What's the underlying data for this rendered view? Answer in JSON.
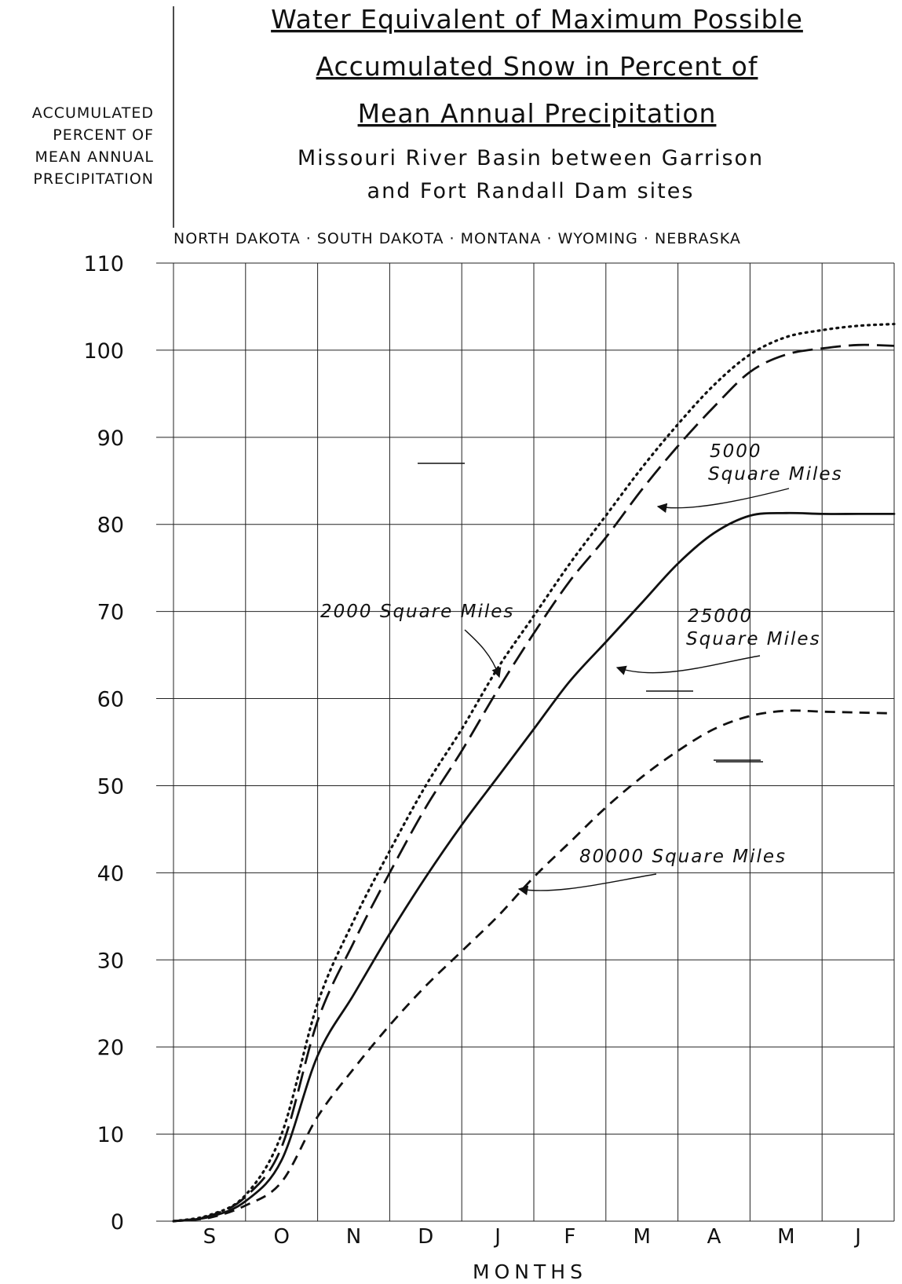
{
  "title": {
    "lines": [
      "Water Equivalent of Maximum Possible",
      "Accumulated Snow in Percent of",
      "Mean Annual Precipitation"
    ]
  },
  "subtitle": {
    "lines": [
      "Missouri River Basin between Garrison",
      "and Fort Randall Dam sites"
    ]
  },
  "states": "NORTH DAKOTA · SOUTH DAKOTA · MONTANA · WYOMING · NEBRASKA",
  "colors": {
    "ink": "#111111",
    "background": "#ffffff"
  },
  "chart_data": {
    "type": "line",
    "ylabel_lines": [
      "ACCUMULATED",
      "PERCENT OF",
      "MEAN ANNUAL",
      "PRECIPITATION"
    ],
    "xlabel": "MONTHS",
    "x_ticks": [
      "S",
      "O",
      "N",
      "D",
      "J",
      "F",
      "M",
      "A",
      "M",
      "J"
    ],
    "y_ticks": [
      "0",
      "10",
      "20",
      "30",
      "40",
      "50",
      "60",
      "70",
      "80",
      "90",
      "100",
      "110"
    ],
    "xlim": [
      0,
      10
    ],
    "ylim": [
      0,
      110
    ],
    "grid": true,
    "series": [
      {
        "name": "2000 Square Miles",
        "style": "dotted",
        "points": [
          [
            0,
            0
          ],
          [
            0.5,
            0.7
          ],
          [
            1,
            3
          ],
          [
            1.5,
            10
          ],
          [
            2,
            25
          ],
          [
            2.5,
            34.5
          ],
          [
            3,
            42.5
          ],
          [
            3.5,
            50
          ],
          [
            4,
            56.5
          ],
          [
            4.5,
            63.5
          ],
          [
            5,
            69.5
          ],
          [
            5.5,
            75.5
          ],
          [
            6,
            81
          ],
          [
            6.5,
            86.5
          ],
          [
            7,
            91.5
          ],
          [
            7.5,
            96
          ],
          [
            8,
            99.5
          ],
          [
            8.5,
            101.5
          ],
          [
            9,
            102.3
          ],
          [
            9.5,
            102.8
          ],
          [
            10,
            103
          ]
        ]
      },
      {
        "name": "5000 Square Miles",
        "style": "long-dash",
        "points": [
          [
            0,
            0
          ],
          [
            0.5,
            0.6
          ],
          [
            1,
            2.8
          ],
          [
            1.5,
            8.5
          ],
          [
            2,
            23
          ],
          [
            2.5,
            32
          ],
          [
            3,
            40
          ],
          [
            3.5,
            47.5
          ],
          [
            4,
            54
          ],
          [
            4.5,
            61
          ],
          [
            5,
            67.5
          ],
          [
            5.5,
            73.5
          ],
          [
            6,
            78.5
          ],
          [
            6.5,
            84
          ],
          [
            7,
            89
          ],
          [
            7.5,
            93.5
          ],
          [
            8,
            97.5
          ],
          [
            8.5,
            99.5
          ],
          [
            9,
            100.2
          ],
          [
            9.5,
            100.6
          ],
          [
            10,
            100.5
          ]
        ]
      },
      {
        "name": "25000 Square Miles",
        "style": "solid",
        "points": [
          [
            0,
            0
          ],
          [
            0.5,
            0.5
          ],
          [
            1,
            2.3
          ],
          [
            1.5,
            7
          ],
          [
            2,
            19
          ],
          [
            2.5,
            26
          ],
          [
            3,
            33
          ],
          [
            3.5,
            39.5
          ],
          [
            4,
            45.5
          ],
          [
            4.5,
            51
          ],
          [
            5,
            56.5
          ],
          [
            5.5,
            62
          ],
          [
            6,
            66.5
          ],
          [
            6.5,
            71
          ],
          [
            7,
            75.5
          ],
          [
            7.5,
            79
          ],
          [
            8,
            81
          ],
          [
            8.5,
            81.3
          ],
          [
            9,
            81.2
          ],
          [
            9.5,
            81.2
          ],
          [
            10,
            81.2
          ]
        ]
      },
      {
        "name": "80000 Square Miles",
        "style": "dashed",
        "points": [
          [
            0,
            0
          ],
          [
            0.5,
            0.4
          ],
          [
            1,
            1.8
          ],
          [
            1.5,
            4.5
          ],
          [
            2,
            12
          ],
          [
            2.5,
            17.5
          ],
          [
            3,
            22.5
          ],
          [
            3.5,
            27
          ],
          [
            4,
            31
          ],
          [
            4.5,
            35
          ],
          [
            5,
            39.5
          ],
          [
            5.5,
            43.5
          ],
          [
            6,
            47.5
          ],
          [
            6.5,
            51
          ],
          [
            7,
            54
          ],
          [
            7.5,
            56.5
          ],
          [
            8,
            58
          ],
          [
            8.5,
            58.6
          ],
          [
            9,
            58.5
          ],
          [
            9.5,
            58.4
          ],
          [
            10,
            58.3
          ]
        ]
      }
    ],
    "annotations": [
      {
        "name": "2000 Square Miles",
        "lines": [
          "2000 Square Miles"
        ],
        "points_to_series": 0
      },
      {
        "name": "5000 Square Miles",
        "lines": [
          "5000",
          "Square Miles"
        ],
        "points_to_series": 1
      },
      {
        "name": "25000 Square Miles",
        "lines": [
          "25000",
          "Square Miles"
        ],
        "points_to_series": 2
      },
      {
        "name": "80000 Square Miles",
        "lines": [
          "80000 Square Miles"
        ],
        "points_to_series": 3
      }
    ]
  }
}
